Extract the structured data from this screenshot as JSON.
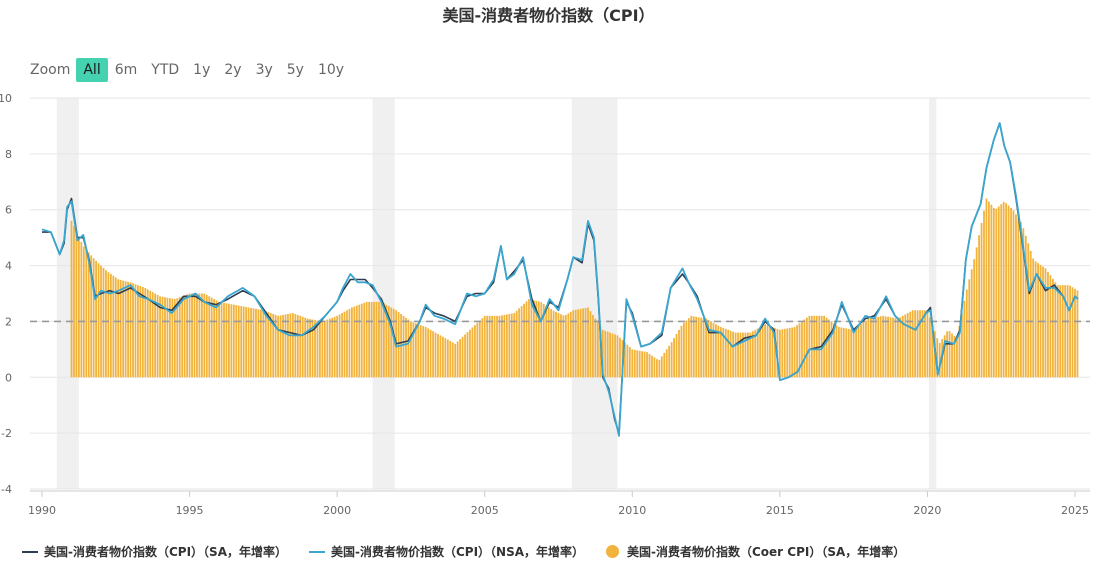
{
  "title": "美国-消费者物价指数（CPI）",
  "zoom": {
    "label": "Zoom",
    "buttons": [
      "All",
      "6m",
      "YTD",
      "1y",
      "2y",
      "3y",
      "5y",
      "10y"
    ],
    "active": "All"
  },
  "colors": {
    "sa": "#2c3e50",
    "nsa": "#3aa6d0",
    "core": "#f2b33d",
    "grid": "#e6e6e6",
    "recession": "#f0f0f0",
    "reference": "#999999"
  },
  "chart_data": {
    "type": "line",
    "title": "美国-消费者物价指数（CPI）",
    "xlabel": "",
    "ylabel": "",
    "xlim": [
      1990.0,
      2025.2
    ],
    "ylim": [
      -4,
      10
    ],
    "x_ticks": [
      "1990",
      "1995",
      "2000",
      "2005",
      "2010",
      "2015",
      "2020",
      "2025"
    ],
    "y_ticks": [
      "10",
      "8",
      "6",
      "4",
      "2",
      "0",
      "-2",
      "-4"
    ],
    "grid": true,
    "legend_position": "bottom",
    "reference_line": {
      "y": 2,
      "style": "dashed"
    },
    "recession_bands": [
      [
        1990.5,
        1991.25
      ],
      [
        2001.2,
        2001.95
      ],
      [
        2007.95,
        2009.5
      ],
      [
        2020.05,
        2020.3
      ]
    ],
    "series": [
      {
        "name": "美国-消费者物价指数（CPI）（SA，年增率）",
        "kind": "line",
        "x": [
          1990.0,
          1990.3,
          1990.6,
          1990.75,
          1990.85,
          1991.0,
          1991.2,
          1991.4,
          1991.6,
          1991.8,
          1992.0,
          1992.3,
          1992.6,
          1993.0,
          1993.3,
          1993.6,
          1994.0,
          1994.4,
          1994.8,
          1995.2,
          1995.5,
          1995.9,
          1996.3,
          1996.8,
          1997.2,
          1997.6,
          1998.0,
          1998.4,
          1998.8,
          1999.2,
          1999.6,
          2000.0,
          2000.2,
          2000.45,
          2000.7,
          2000.95,
          2001.2,
          2001.5,
          2001.8,
          2002.0,
          2002.4,
          2002.8,
          2003.0,
          2003.3,
          2003.6,
          2004.0,
          2004.4,
          2004.7,
          2005.0,
          2005.3,
          2005.55,
          2005.75,
          2006.0,
          2006.3,
          2006.6,
          2006.9,
          2007.2,
          2007.5,
          2007.8,
          2008.0,
          2008.3,
          2008.5,
          2008.7,
          2008.85,
          2009.0,
          2009.2,
          2009.4,
          2009.55,
          2009.8,
          2010.0,
          2010.3,
          2010.6,
          2011.0,
          2011.3,
          2011.7,
          2011.9,
          2012.2,
          2012.6,
          2013.0,
          2013.4,
          2013.8,
          2014.2,
          2014.5,
          2014.8,
          2015.0,
          2015.3,
          2015.6,
          2016.0,
          2016.4,
          2016.8,
          2017.1,
          2017.5,
          2017.9,
          2018.2,
          2018.6,
          2018.9,
          2019.2,
          2019.6,
          2019.95,
          2020.1,
          2020.35,
          2020.6,
          2020.9,
          2021.1,
          2021.3,
          2021.5,
          2021.8,
          2022.0,
          2022.25,
          2022.45,
          2022.6,
          2022.8,
          2023.0,
          2023.2,
          2023.45,
          2023.7,
          2024.0,
          2024.3,
          2024.6,
          2024.8,
          2025.0,
          2025.1
        ],
        "y": [
          5.2,
          5.2,
          4.4,
          4.8,
          6.0,
          6.4,
          5.0,
          5.0,
          4.2,
          2.9,
          3.0,
          3.1,
          3.0,
          3.2,
          3.0,
          2.8,
          2.5,
          2.4,
          2.9,
          2.9,
          2.7,
          2.6,
          2.8,
          3.1,
          2.9,
          2.3,
          1.7,
          1.6,
          1.5,
          1.7,
          2.2,
          2.7,
          3.1,
          3.5,
          3.5,
          3.5,
          3.2,
          2.8,
          2.0,
          1.2,
          1.3,
          2.0,
          2.5,
          2.3,
          2.2,
          2.0,
          2.9,
          3.0,
          3.0,
          3.4,
          4.7,
          3.5,
          3.8,
          4.2,
          2.8,
          2.0,
          2.7,
          2.5,
          3.5,
          4.3,
          4.1,
          5.5,
          4.9,
          2.8,
          0.0,
          -0.4,
          -1.5,
          -2.0,
          2.7,
          2.3,
          1.1,
          1.2,
          1.5,
          3.2,
          3.7,
          3.4,
          2.9,
          1.6,
          1.6,
          1.1,
          1.4,
          1.5,
          2.0,
          1.7,
          -0.1,
          0.0,
          0.2,
          1.0,
          1.1,
          1.7,
          2.6,
          1.7,
          2.1,
          2.2,
          2.8,
          2.2,
          1.9,
          1.7,
          2.3,
          2.5,
          0.1,
          1.2,
          1.2,
          1.7,
          4.2,
          5.4,
          6.2,
          7.5,
          8.5,
          9.1,
          8.3,
          7.7,
          6.4,
          4.9,
          3.0,
          3.7,
          3.1,
          3.3,
          2.9,
          2.4,
          2.9,
          2.8
        ],
        "color": "#2c3e50"
      },
      {
        "name": "美国-消费者物价指数（CPI）（NSA，年增率）",
        "kind": "line",
        "x": [
          1990.0,
          1990.3,
          1990.6,
          1990.75,
          1990.85,
          1991.0,
          1991.2,
          1991.4,
          1991.6,
          1991.8,
          1992.0,
          1992.3,
          1992.6,
          1993.0,
          1993.3,
          1993.6,
          1994.0,
          1994.4,
          1994.8,
          1995.2,
          1995.5,
          1995.9,
          1996.3,
          1996.8,
          1997.2,
          1997.6,
          1998.0,
          1998.4,
          1998.8,
          1999.2,
          1999.6,
          2000.0,
          2000.2,
          2000.45,
          2000.7,
          2000.95,
          2001.2,
          2001.5,
          2001.8,
          2002.0,
          2002.4,
          2002.8,
          2003.0,
          2003.3,
          2003.6,
          2004.0,
          2004.4,
          2004.7,
          2005.0,
          2005.3,
          2005.55,
          2005.75,
          2006.0,
          2006.3,
          2006.6,
          2006.9,
          2007.2,
          2007.5,
          2007.8,
          2008.0,
          2008.3,
          2008.5,
          2008.7,
          2008.85,
          2009.0,
          2009.2,
          2009.4,
          2009.55,
          2009.8,
          2010.0,
          2010.3,
          2010.6,
          2011.0,
          2011.3,
          2011.7,
          2011.9,
          2012.2,
          2012.6,
          2013.0,
          2013.4,
          2013.8,
          2014.2,
          2014.5,
          2014.8,
          2015.0,
          2015.3,
          2015.6,
          2016.0,
          2016.4,
          2016.8,
          2017.1,
          2017.5,
          2017.9,
          2018.2,
          2018.6,
          2018.9,
          2019.2,
          2019.6,
          2019.95,
          2020.1,
          2020.35,
          2020.6,
          2020.9,
          2021.1,
          2021.3,
          2021.5,
          2021.8,
          2022.0,
          2022.25,
          2022.45,
          2022.6,
          2022.8,
          2023.0,
          2023.2,
          2023.45,
          2023.7,
          2024.0,
          2024.3,
          2024.6,
          2024.8,
          2025.0,
          2025.1
        ],
        "y": [
          5.3,
          5.2,
          4.4,
          4.9,
          6.1,
          6.3,
          4.9,
          5.1,
          4.1,
          2.8,
          3.1,
          3.0,
          3.1,
          3.3,
          2.9,
          2.8,
          2.6,
          2.3,
          2.8,
          3.0,
          2.7,
          2.5,
          2.9,
          3.2,
          2.9,
          2.2,
          1.7,
          1.5,
          1.5,
          1.8,
          2.2,
          2.7,
          3.2,
          3.7,
          3.4,
          3.4,
          3.3,
          2.7,
          1.9,
          1.1,
          1.2,
          2.0,
          2.6,
          2.2,
          2.1,
          1.9,
          3.0,
          2.9,
          3.0,
          3.5,
          4.7,
          3.5,
          3.7,
          4.3,
          2.6,
          2.0,
          2.8,
          2.4,
          3.5,
          4.3,
          4.2,
          5.6,
          5.0,
          2.9,
          0.1,
          -0.5,
          -1.4,
          -2.1,
          2.8,
          2.2,
          1.1,
          1.2,
          1.6,
          3.2,
          3.9,
          3.4,
          2.8,
          1.7,
          1.6,
          1.1,
          1.3,
          1.5,
          2.1,
          1.6,
          -0.1,
          0.0,
          0.2,
          1.0,
          1.0,
          1.6,
          2.7,
          1.6,
          2.2,
          2.1,
          2.9,
          2.2,
          1.9,
          1.7,
          2.3,
          2.4,
          0.1,
          1.3,
          1.2,
          1.6,
          4.2,
          5.4,
          6.2,
          7.5,
          8.5,
          9.1,
          8.3,
          7.7,
          6.5,
          5.0,
          3.1,
          3.7,
          3.2,
          3.2,
          2.9,
          2.4,
          2.9,
          2.8
        ],
        "color": "#3aa6d0"
      },
      {
        "name": "美国-消费者物价指数（Coer CPI）（SA，年增率）",
        "kind": "bar",
        "x": [
          1991.0,
          1991.4,
          1991.8,
          1992.2,
          1992.6,
          1993.0,
          1993.5,
          1994.0,
          1994.5,
          1995.0,
          1995.5,
          1996.0,
          1996.5,
          1997.0,
          1997.5,
          1998.0,
          1998.5,
          1999.0,
          1999.5,
          2000.0,
          2000.5,
          2001.0,
          2001.5,
          2002.0,
          2002.5,
          2003.0,
          2003.5,
          2004.0,
          2004.5,
          2005.0,
          2005.5,
          2006.0,
          2006.5,
          2006.9,
          2007.3,
          2007.7,
          2008.0,
          2008.5,
          2009.0,
          2009.5,
          2010.0,
          2010.5,
          2010.9,
          2011.3,
          2011.7,
          2012.0,
          2012.5,
          2013.0,
          2013.5,
          2014.0,
          2014.5,
          2015.0,
          2015.5,
          2016.0,
          2016.5,
          2017.0,
          2017.5,
          2018.0,
          2018.5,
          2019.0,
          2019.5,
          2020.0,
          2020.4,
          2020.7,
          2021.0,
          2021.3,
          2021.6,
          2022.0,
          2022.3,
          2022.6,
          2022.9,
          2023.2,
          2023.6,
          2024.0,
          2024.4,
          2024.8,
          2025.1
        ],
        "y": [
          5.6,
          4.7,
          4.2,
          3.8,
          3.5,
          3.4,
          3.2,
          2.9,
          2.8,
          3.0,
          3.0,
          2.7,
          2.6,
          2.5,
          2.4,
          2.2,
          2.3,
          2.1,
          2.0,
          2.2,
          2.5,
          2.7,
          2.7,
          2.4,
          2.0,
          1.8,
          1.5,
          1.2,
          1.7,
          2.2,
          2.2,
          2.3,
          2.8,
          2.7,
          2.4,
          2.2,
          2.4,
          2.5,
          1.7,
          1.5,
          1.0,
          0.9,
          0.6,
          1.2,
          1.9,
          2.2,
          2.1,
          1.8,
          1.6,
          1.6,
          1.9,
          1.7,
          1.8,
          2.2,
          2.2,
          1.8,
          1.7,
          2.1,
          2.2,
          2.1,
          2.4,
          2.4,
          1.2,
          1.7,
          1.4,
          3.0,
          4.3,
          6.4,
          6.0,
          6.3,
          6.0,
          5.5,
          4.2,
          3.9,
          3.3,
          3.3,
          3.1
        ],
        "color": "#f2b33d"
      }
    ]
  },
  "legend": [
    {
      "label": "美国-消费者物价指数（CPI）（SA，年增率）",
      "kind": "line",
      "color": "#2c3e50"
    },
    {
      "label": "美国-消费者物价指数（CPI）（NSA，年增率）",
      "kind": "line",
      "color": "#3aa6d0"
    },
    {
      "label": "美国-消费者物价指数（Coer CPI）（SA，年增率）",
      "kind": "dot",
      "color": "#f2b33d"
    }
  ]
}
